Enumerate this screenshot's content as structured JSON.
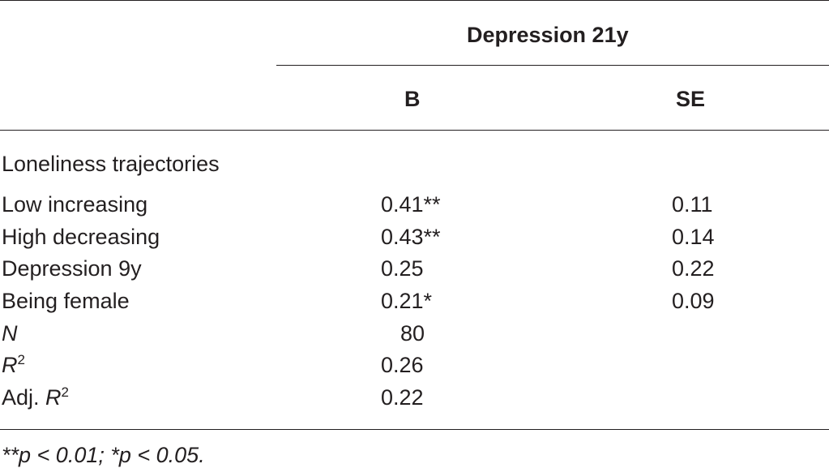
{
  "table": {
    "group_header": "Depression 21y",
    "col_b": "B",
    "col_se": "SE",
    "section_label": "Loneliness trajectories",
    "rows": [
      {
        "label": "Low increasing",
        "b": "0.41**",
        "se": "0.11"
      },
      {
        "label": "High decreasing",
        "b": "0.43**",
        "se": "0.14"
      },
      {
        "label": "Depression 9y",
        "b": "0.25",
        "se": "0.22"
      },
      {
        "label": "Being female",
        "b": "0.21*",
        "se": "0.09"
      }
    ],
    "stats": {
      "n_label": "N",
      "n_value": "80",
      "r2_label": "R",
      "r2_sup": "2",
      "r2_value": "0.26",
      "adj_prefix": "Adj. ",
      "adj_label": "R",
      "adj_sup": "2",
      "adj_value": "0.22"
    },
    "footnote": "**p < 0.01; *p < 0.05."
  }
}
